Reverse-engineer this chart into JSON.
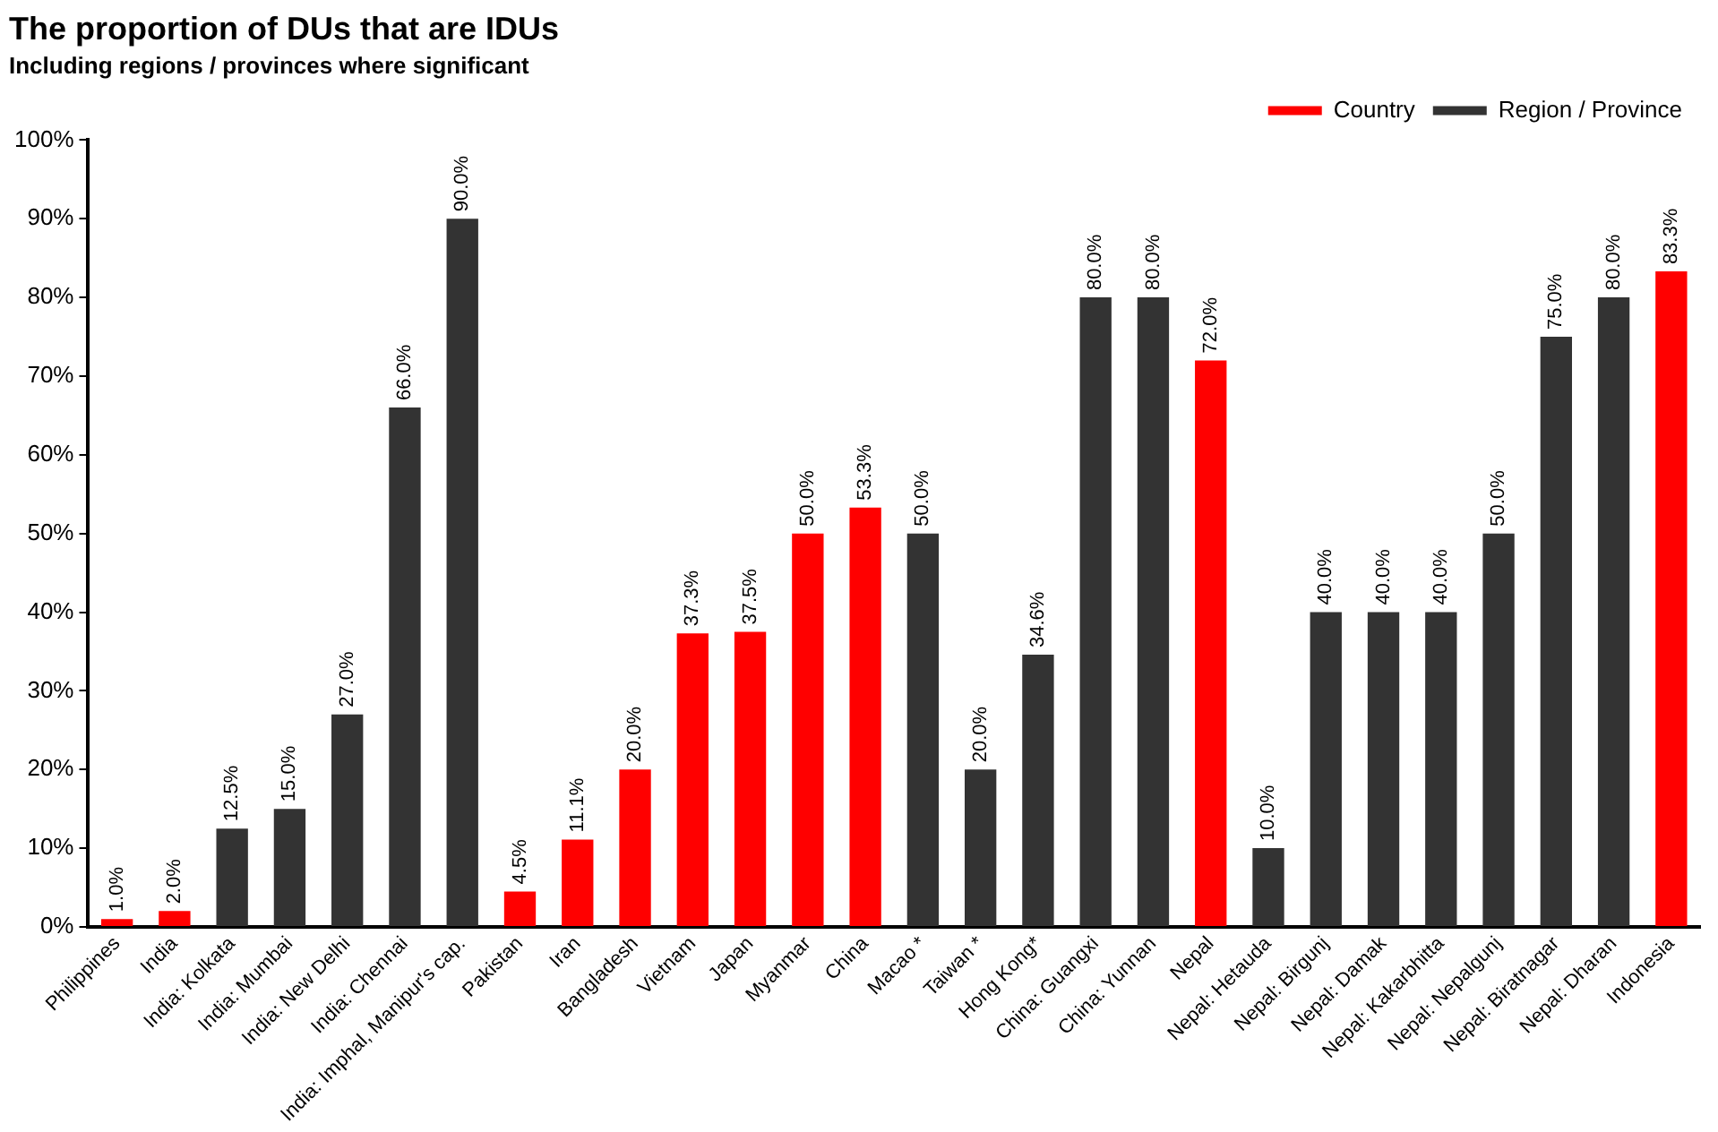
{
  "chart_data": {
    "type": "bar",
    "title": "The proportion of DUs that are IDUs",
    "subtitle": "Including regions / provinces where significant",
    "categories": [
      "Philippines",
      "India",
      "India: Kolkata",
      "India: Mumbai",
      "India: New Delhi",
      "India: Chennai",
      "India: Imphal, Manipur's cap.",
      "Pakistan",
      "Iran",
      "Bangladesh",
      "Vietnam",
      "Japan",
      "Myanmar",
      "China",
      "Macao *",
      "Taiwan *",
      "Hong Kong*",
      "China: Guangxi",
      "China: Yunnan",
      "Nepal",
      "Nepal: Hetauda",
      "Nepal: Birgunj",
      "Nepal: Damak",
      "Nepal: Kakarbhitta",
      "Nepal: Nepalgunj",
      "Nepal: Biratnagar",
      "Nepal: Dharan",
      "Indonesia"
    ],
    "series": [
      {
        "name": "Country",
        "color": "#ff0000",
        "values": [
          1.0,
          2.0,
          null,
          null,
          null,
          null,
          null,
          4.5,
          11.1,
          20.0,
          37.3,
          37.5,
          50.0,
          53.3,
          null,
          null,
          null,
          null,
          null,
          72.0,
          null,
          null,
          null,
          null,
          null,
          null,
          null,
          83.3
        ],
        "value_labels": [
          "1.0%",
          "2.0%",
          null,
          null,
          null,
          null,
          null,
          "4.5%",
          "11.1%",
          "20.0%",
          "37.3%",
          "37.5%",
          "50.0%",
          "53.3%",
          null,
          null,
          null,
          null,
          null,
          "72.0%",
          null,
          null,
          null,
          null,
          null,
          null,
          null,
          "83.3%"
        ]
      },
      {
        "name": "Region / Province",
        "color": "#333333",
        "values": [
          null,
          null,
          12.5,
          15.0,
          27.0,
          66.0,
          90.0,
          null,
          null,
          null,
          null,
          null,
          null,
          null,
          50.0,
          20.0,
          34.6,
          80.0,
          80.0,
          null,
          10.0,
          40.0,
          40.0,
          40.0,
          50.0,
          75.0,
          80.0,
          null
        ],
        "value_labels": [
          null,
          null,
          "12.5%",
          "15.0%",
          "27.0%",
          "66.0%",
          "90.0%",
          null,
          null,
          null,
          null,
          null,
          null,
          null,
          "50.0%",
          "20.0%",
          "34.6%",
          "80.0%",
          "80.0%",
          null,
          "10.0%",
          "40.0%",
          "40.0%",
          "40.0%",
          "50.0%",
          "75.0%",
          "80.0%",
          null
        ]
      }
    ],
    "ylim": [
      0,
      100
    ],
    "yticks": [
      {
        "value": 0,
        "label": "0%"
      },
      {
        "value": 10,
        "label": "10%"
      },
      {
        "value": 20,
        "label": "20%"
      },
      {
        "value": 30,
        "label": "30%"
      },
      {
        "value": 40,
        "label": "40%"
      },
      {
        "value": 50,
        "label": "50%"
      },
      {
        "value": 60,
        "label": "60%"
      },
      {
        "value": 70,
        "label": "70%"
      },
      {
        "value": 80,
        "label": "80%"
      },
      {
        "value": 90,
        "label": "90%"
      },
      {
        "value": 100,
        "label": "100%"
      }
    ],
    "grid": false,
    "legend": "top right"
  }
}
